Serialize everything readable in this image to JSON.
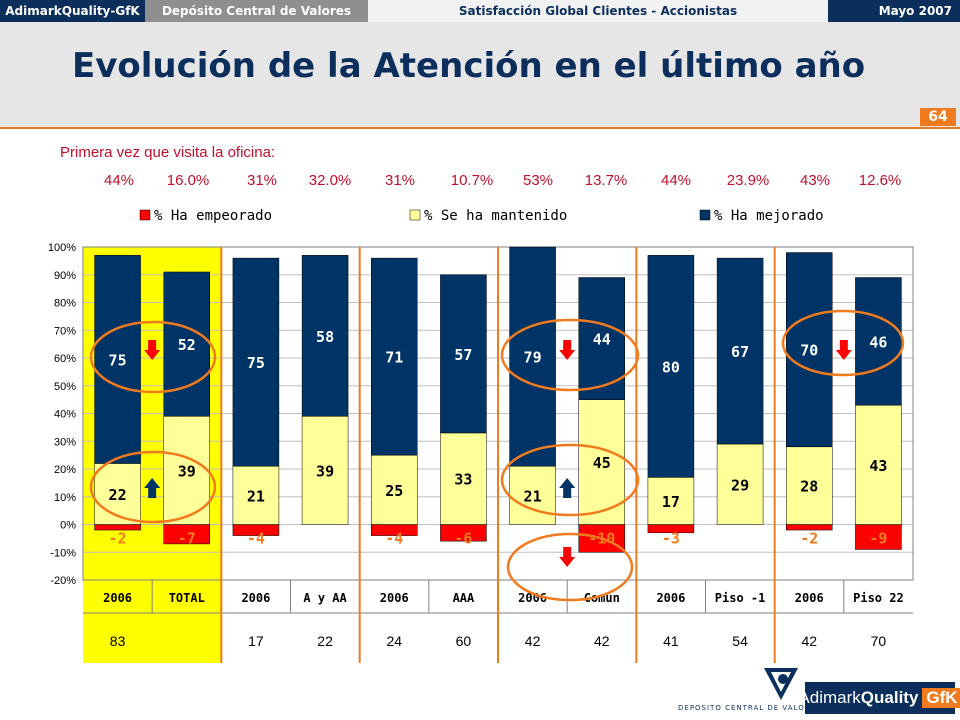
{
  "header": {
    "brand_tab": "AdimarkQuality-GfK",
    "client_tab": "Depósito Central de Valores",
    "study_tab": "Satisfacción Global Clientes - Accionistas",
    "date_tab": "Mayo 2007",
    "title": "Evolución de la Atención en el último año",
    "page_number": "64"
  },
  "first_visit": {
    "label": "Primera vez que visita la oficina:",
    "values": [
      "44%",
      "16.0%",
      "31%",
      "32.0%",
      "31%",
      "10.7%",
      "53%",
      "13.7%",
      "44%",
      "23.9%",
      "43%",
      "12.6%"
    ]
  },
  "logos": {
    "dcv_text": "DEPOSITO CENTRAL DE VALORES",
    "gfk_brand": "Adimark",
    "gfk_quality": "Quality",
    "gfk_gfk": "GfK"
  },
  "colors": {
    "worsened": "#ff0000",
    "maintained": "#ffff99",
    "improved": "#003366",
    "highlight": "#ffff00",
    "accent": "#f07b1f"
  },
  "chart_data": {
    "type": "bar",
    "stacked": true,
    "categories": [
      "2006",
      "TOTAL",
      "2006",
      "A y AA",
      "2006",
      "AAA",
      "2006",
      "Común",
      "2006",
      "Piso -1",
      "2006",
      "Piso 22"
    ],
    "base_counts": [
      "83",
      "",
      "17",
      "22",
      "24",
      "60",
      "42",
      "42",
      "41",
      "54",
      "42",
      "70"
    ],
    "ylim": [
      -20,
      100
    ],
    "yticks": [
      "-20%",
      "-10%",
      "0%",
      "10%",
      "20%",
      "30%",
      "40%",
      "50%",
      "60%",
      "70%",
      "80%",
      "90%",
      "100%"
    ],
    "legend_position": "top",
    "series": [
      {
        "name": "% Ha empeorado",
        "values": [
          -2,
          -7,
          -4,
          0,
          -4,
          -6,
          0,
          -10,
          -3,
          0,
          -2,
          -9
        ],
        "labels": [
          "-2",
          "-7",
          "-4",
          "",
          "-4",
          "-6",
          "",
          "-10",
          "-3",
          "",
          "-2",
          "-9"
        ]
      },
      {
        "name": "% Se ha mantenido",
        "values": [
          22,
          39,
          21,
          39,
          25,
          33,
          21,
          45,
          17,
          29,
          28,
          43
        ],
        "labels": [
          "22",
          "39",
          "21",
          "39",
          "25",
          "33",
          "21",
          "45",
          "17",
          "29",
          "28",
          "43"
        ]
      },
      {
        "name": "% Ha mejorado",
        "values": [
          75,
          52,
          75,
          58,
          71,
          57,
          79,
          44,
          80,
          67,
          70,
          46
        ],
        "labels": [
          "75",
          "52",
          "75",
          "58",
          "71",
          "57",
          "79",
          "44",
          "80",
          "67",
          "70",
          "46"
        ]
      }
    ],
    "arrows": [
      {
        "group": 0,
        "series": "% Ha mejorado",
        "direction": "down",
        "color": "#ff0000"
      },
      {
        "group": 0,
        "series": "% Se ha mantenido",
        "direction": "up",
        "color": "#003366"
      },
      {
        "group": 3,
        "series": "% Ha mejorado",
        "direction": "down",
        "color": "#ff0000"
      },
      {
        "group": 3,
        "series": "% Se ha mantenido",
        "direction": "up",
        "color": "#003366"
      },
      {
        "group": 3,
        "series": "% Ha empeorado",
        "direction": "down",
        "color": "#ff0000"
      },
      {
        "group": 5,
        "series": "% Ha mejorado",
        "direction": "down",
        "color": "#ff0000"
      }
    ]
  }
}
